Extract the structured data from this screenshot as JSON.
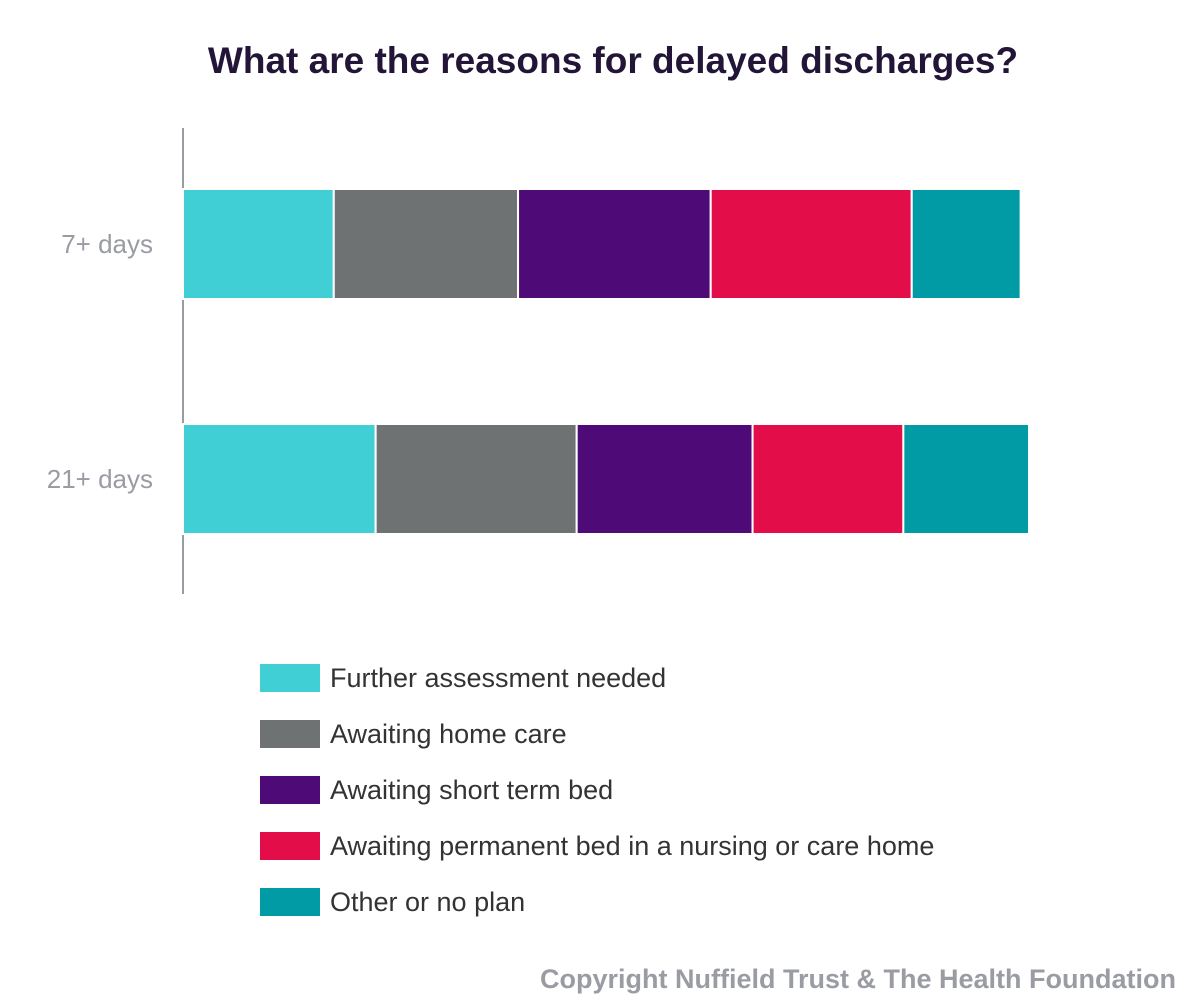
{
  "chart_data": {
    "type": "bar",
    "orientation": "horizontal",
    "stacked": true,
    "title": "What are the reasons for delayed discharges?",
    "categories": [
      "7+ days",
      "21+ days"
    ],
    "series": [
      {
        "name": "Further assessment needed",
        "color": "#40CFD5",
        "values": [
          18,
          23
        ]
      },
      {
        "name": "Awaiting home care",
        "color": "#6E7272",
        "values": [
          22,
          24
        ]
      },
      {
        "name": "Awaiting short term bed",
        "color": "#4E0B78",
        "values": [
          23,
          21
        ]
      },
      {
        "name": "Awaiting permanent bed in a nursing or care home",
        "color": "#E30D4A",
        "values": [
          24,
          18
        ]
      },
      {
        "name": "Other or no plan",
        "color": "#009BA5",
        "values": [
          13,
          15
        ]
      }
    ],
    "xlim": [
      0,
      101
    ],
    "grid": false,
    "legend_position": "bottom"
  },
  "footer": {
    "copyright": "Copyright Nuffield Trust & The Health Foundation"
  }
}
